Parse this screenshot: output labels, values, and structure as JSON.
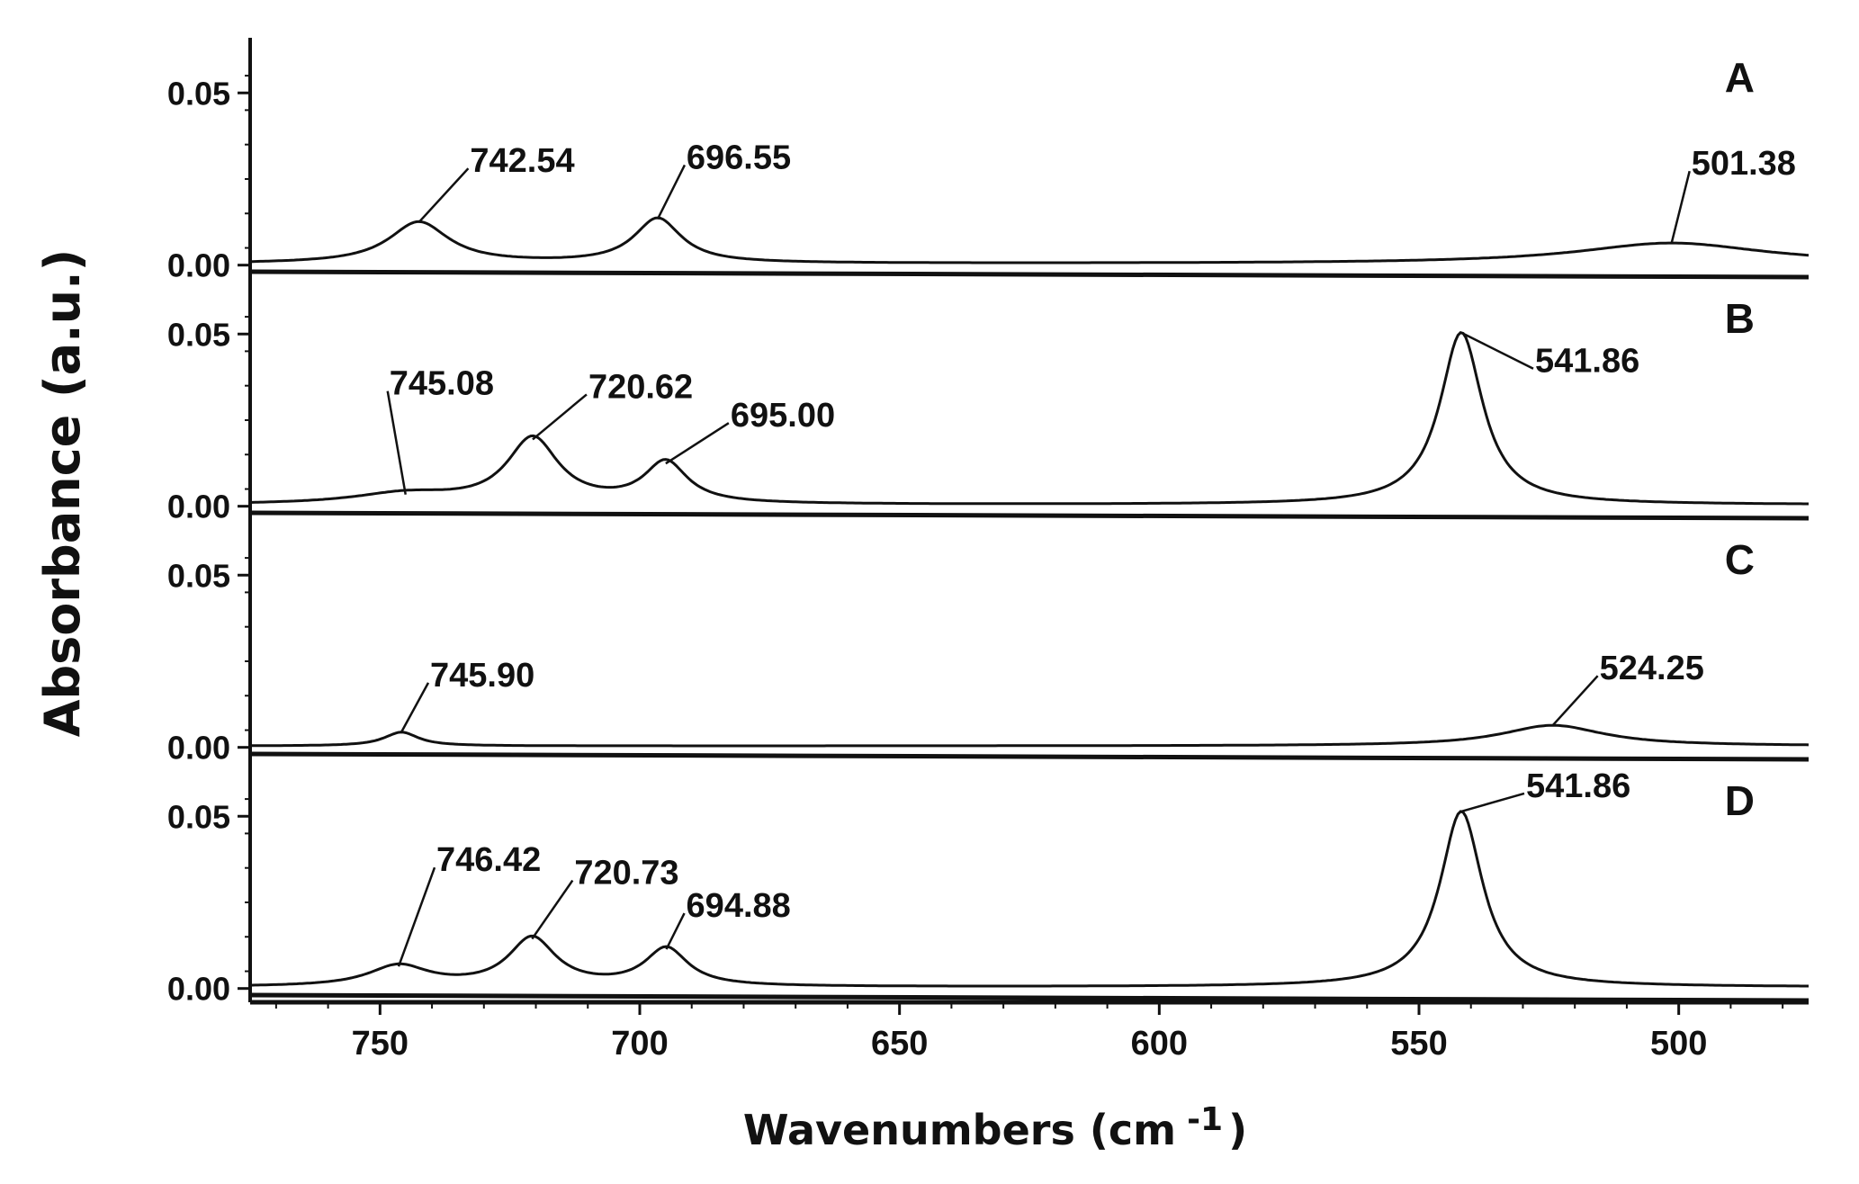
{
  "chart_data": {
    "type": "line",
    "xlabel": "Wavenumbers (cm",
    "xlabel_sup": "-1",
    "xlabel_close": ")",
    "ylabel": "Absorbance (a.u.)",
    "x_reversed": true,
    "xlim": [
      775,
      475
    ],
    "x_ticks": [
      750,
      700,
      650,
      600,
      550,
      500
    ],
    "x_tick_labels": [
      "750",
      "700",
      "650",
      "600",
      "550",
      "500"
    ],
    "y_ticks": [
      0.0,
      0.05
    ],
    "y_tick_labels": [
      "0.00",
      "0.05"
    ],
    "ylim": [
      -0.004,
      0.066
    ],
    "grid": false,
    "panels": [
      {
        "label": "A",
        "peaks": [
          {
            "x": 742.54,
            "y": 0.012,
            "w": 7,
            "label": "742.54"
          },
          {
            "x": 696.55,
            "y": 0.013,
            "w": 5.5,
            "label": "696.55"
          },
          {
            "x": 501.38,
            "y": 0.006,
            "w": 22,
            "label": "501.38"
          }
        ]
      },
      {
        "label": "B",
        "peaks": [
          {
            "x": 745.08,
            "y": 0.003,
            "w": 12,
            "label": "745.08"
          },
          {
            "x": 720.62,
            "y": 0.019,
            "w": 6,
            "label": "720.62"
          },
          {
            "x": 695.0,
            "y": 0.012,
            "w": 5,
            "label": "695.00"
          },
          {
            "x": 541.86,
            "y": 0.05,
            "w": 5,
            "label": "541.86"
          }
        ]
      },
      {
        "label": "C",
        "peaks": [
          {
            "x": 745.9,
            "y": 0.004,
            "w": 4,
            "label": "745.90"
          },
          {
            "x": 524.25,
            "y": 0.006,
            "w": 12,
            "label": "524.25"
          }
        ]
      },
      {
        "label": "D",
        "peaks": [
          {
            "x": 746.42,
            "y": 0.006,
            "w": 7,
            "label": "746.42"
          },
          {
            "x": 720.73,
            "y": 0.014,
            "w": 5.5,
            "label": "720.73"
          },
          {
            "x": 694.88,
            "y": 0.011,
            "w": 5,
            "label": "694.88"
          },
          {
            "x": 541.86,
            "y": 0.051,
            "w": 5,
            "label": "541.86"
          }
        ]
      }
    ]
  }
}
